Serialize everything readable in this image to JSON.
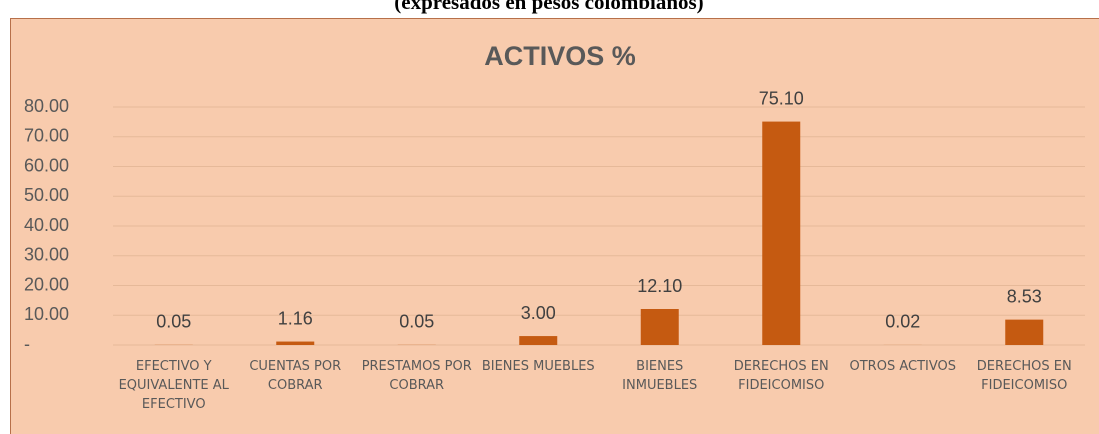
{
  "header": "(expresados en pesos colombianos)",
  "chart_data": {
    "type": "bar",
    "title": "ACTIVOS %",
    "categories": [
      "EFECTIVO Y EQUIVALENTE AL EFECTIVO",
      "CUENTAS POR COBRAR",
      "PRESTAMOS POR COBRAR",
      "BIENES MUEBLES",
      "BIENES INMUEBLES",
      "DERECHOS EN FIDEICOMISO",
      "OTROS ACTIVOS",
      "DERECHOS EN FIDEICOMISO"
    ],
    "values": [
      0.05,
      1.16,
      0.05,
      3.0,
      12.1,
      75.1,
      0.02,
      8.53
    ],
    "value_labels": [
      "0.05",
      "1.16",
      "0.05",
      "3.00",
      "12.10",
      "75.10",
      "0.02",
      "8.53"
    ],
    "color": "#c55a11",
    "ylim": [
      0,
      80
    ],
    "yticks": [
      {
        "value": 0,
        "label": "-"
      },
      {
        "value": 10,
        "label": "10.00"
      },
      {
        "value": 20,
        "label": "20.00"
      },
      {
        "value": 30,
        "label": "30.00"
      },
      {
        "value": 40,
        "label": "40.00"
      },
      {
        "value": 50,
        "label": "50.00"
      },
      {
        "value": 60,
        "label": "60.00"
      },
      {
        "value": 70,
        "label": "70.00"
      },
      {
        "value": 80,
        "label": "80.00"
      }
    ],
    "grid": true
  }
}
